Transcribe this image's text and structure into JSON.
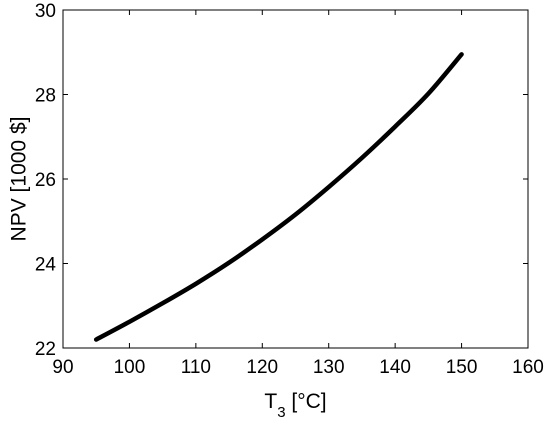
{
  "chart_data": {
    "type": "line",
    "xlabel": "T",
    "xlabel_subscript": "3",
    "xlabel_unit": " [°C]",
    "ylabel": "NPV [1000 $]",
    "xlim": [
      90,
      160
    ],
    "ylim": [
      22,
      30
    ],
    "x_ticks": [
      90,
      100,
      110,
      120,
      130,
      140,
      150,
      160
    ],
    "y_ticks": [
      22,
      24,
      26,
      28,
      30
    ],
    "grid": false,
    "series": [
      {
        "color": "#000000",
        "x": [
          95,
          100,
          105,
          110,
          115,
          120,
          125,
          130,
          135,
          140,
          145,
          150
        ],
        "y": [
          22.2,
          22.62,
          23.06,
          23.52,
          24.02,
          24.57,
          25.16,
          25.81,
          26.5,
          27.24,
          28.02,
          28.95
        ]
      }
    ]
  }
}
